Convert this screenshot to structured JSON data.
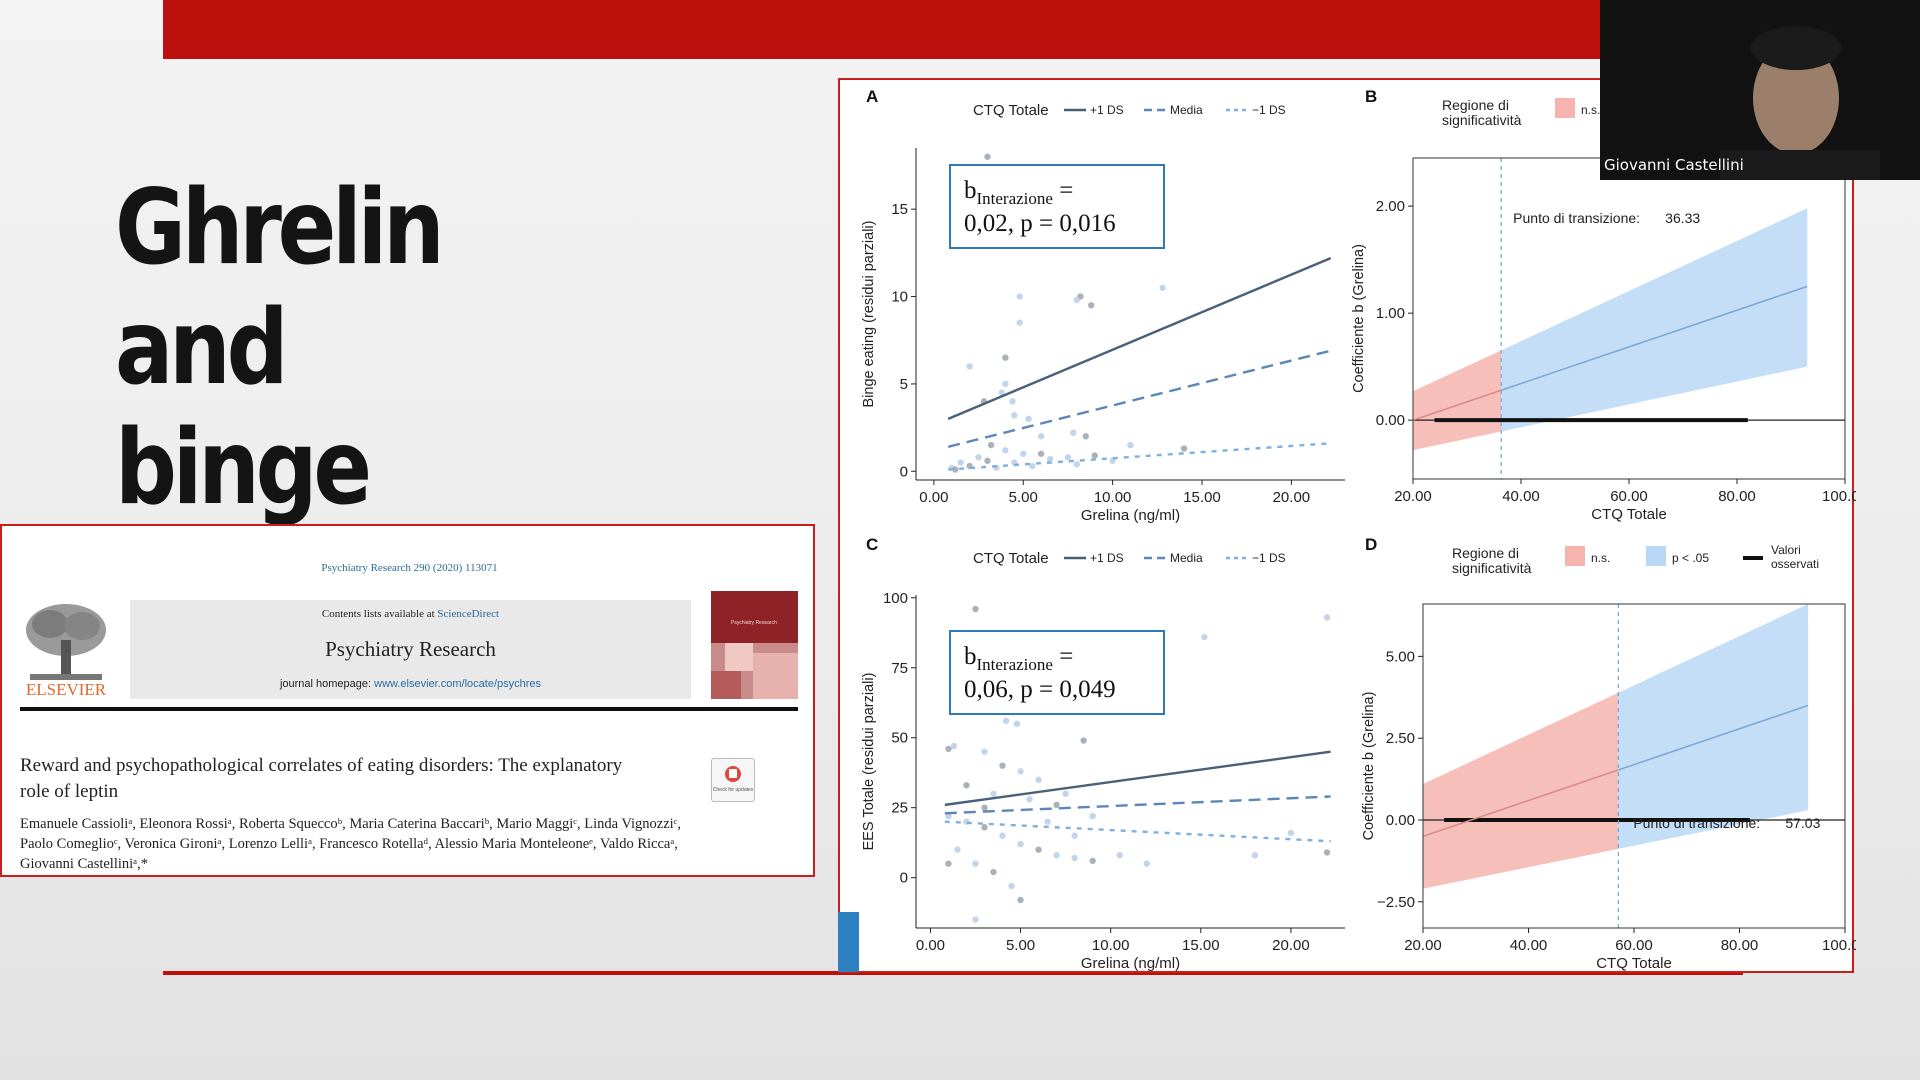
{
  "slide": {
    "title": "Ghrelin and\nbinge eating",
    "colors": {
      "accent": "#bd0f0c",
      "line_dark": "#4a5f78",
      "line_mid": "#5b87b8",
      "line_light": "#7fb0e0",
      "ns": "#f6b4ae",
      "sig": "#b9d8f5"
    }
  },
  "paper": {
    "journal_ref": "Psychiatry Research 290 (2020) 113071",
    "contents_prefix": "Contents lists available at ",
    "sciencedirect": "ScienceDirect",
    "journal_name": "Psychiatry Research",
    "homepage_prefix": "journal homepage: ",
    "homepage_url": "www.elsevier.com/locate/psychres",
    "publisher": "ELSEVIER",
    "cover_label": "Psychiatry Research",
    "check_label": "Check for updates",
    "title": "Reward and psychopathological correlates of eating disorders: The explanatory role of leptin",
    "authors": "Emanuele Cassioliᵃ, Eleonora Rossiᵃ, Roberta Squeccoᵇ, Maria Caterina Baccariᵇ, Mario Maggiᶜ, Linda Vignozziᶜ, Paolo Comeglioᶜ, Veronica Gironiᵃ, Lorenzo Lelliᵃ, Francesco Rotellaᵈ, Alessio Maria Monteleoneᵉ, Valdo Riccaᵃ, Giovanni Castelliniᵃ,*"
  },
  "webcam": {
    "name": "Giovanni Castellini"
  },
  "chart_data": [
    {
      "panel": "A",
      "type": "scatter",
      "legend_title": "CTQ Totale",
      "legend_entries": [
        "+1 DS",
        "Media",
        "−1 DS"
      ],
      "annotation": [
        "b",
        "Interazione",
        " =",
        "0,02, p = 0,016"
      ],
      "xlabel": "Grelina (ng/ml)",
      "ylabel": "Binge eating (residui parziali)",
      "xlim": [
        -1,
        23
      ],
      "ylim": [
        -0.5,
        18.5
      ],
      "xticks": [
        0,
        5,
        10,
        15,
        20
      ],
      "xtick_labels": [
        "0.00",
        "5.00",
        "10.00",
        "15.00",
        "20.00"
      ],
      "yticks": [
        0,
        5,
        10,
        15
      ],
      "ytick_labels": [
        "0",
        "5",
        "10",
        "15"
      ],
      "series": [
        {
          "name": "+1 DS",
          "x": [
            0.8,
            22.2
          ],
          "y": [
            3.0,
            12.2
          ]
        },
        {
          "name": "Media",
          "x": [
            0.8,
            22.2
          ],
          "y": [
            1.4,
            6.9
          ]
        },
        {
          "name": "−1 DS",
          "x": [
            0.8,
            22.2
          ],
          "y": [
            0.1,
            1.6
          ]
        }
      ],
      "points": [
        [
          3.0,
          18.0
        ],
        [
          2.0,
          6.0
        ],
        [
          4.0,
          5.0
        ],
        [
          4.0,
          6.5
        ],
        [
          4.8,
          8.5
        ],
        [
          4.8,
          10.0
        ],
        [
          8.2,
          10.0
        ],
        [
          8.0,
          9.8
        ],
        [
          12.8,
          10.5
        ],
        [
          8.8,
          9.5
        ],
        [
          4.4,
          4.0
        ],
        [
          4.5,
          3.2
        ],
        [
          2.8,
          4.0
        ],
        [
          3.8,
          4.5
        ],
        [
          5.3,
          3.0
        ],
        [
          8.5,
          2.0
        ],
        [
          7.8,
          2.2
        ],
        [
          6.0,
          2.0
        ],
        [
          3.2,
          1.5
        ],
        [
          1.5,
          0.5
        ],
        [
          2.5,
          0.8
        ],
        [
          3.0,
          0.6
        ],
        [
          4.0,
          1.2
        ],
        [
          5.0,
          1.0
        ],
        [
          6.0,
          1.0
        ],
        [
          7.5,
          0.8
        ],
        [
          1.0,
          0.2
        ],
        [
          2.0,
          0.3
        ],
        [
          4.5,
          0.5
        ],
        [
          10.0,
          0.6
        ],
        [
          14.0,
          1.3
        ],
        [
          3.5,
          0.2
        ],
        [
          5.5,
          0.3
        ],
        [
          1.2,
          0.1
        ],
        [
          6.5,
          0.7
        ],
        [
          8.0,
          0.4
        ],
        [
          9.0,
          0.9
        ],
        [
          11.0,
          1.5
        ]
      ]
    },
    {
      "panel": "B",
      "type": "area",
      "legend_title": "Regione di significatività",
      "legend_entries": [
        "n.s."
      ],
      "annotation_label": "Punto di transizione:",
      "transition_value": "36.33",
      "transition_point": 36.33,
      "xlabel": "CTQ Totale",
      "ylabel": "Coefficiente b (Grelina)",
      "xlim": [
        20,
        100
      ],
      "ylim": [
        -0.55,
        2.45
      ],
      "xticks": [
        20,
        40,
        60,
        80,
        100
      ],
      "xtick_labels": [
        "20.00",
        "40.00",
        "60.00",
        "80.00",
        "100.00"
      ],
      "yticks": [
        0,
        1,
        2
      ],
      "ytick_labels": [
        "0.00",
        "1.00",
        "2.00"
      ],
      "line": {
        "x": [
          20,
          93
        ],
        "y": [
          0.0,
          1.25
        ]
      },
      "band": {
        "x": [
          20,
          93
        ],
        "lower": [
          -0.28,
          0.5
        ],
        "upper": [
          0.27,
          1.98
        ]
      },
      "observed": [
        24,
        82
      ]
    },
    {
      "panel": "C",
      "type": "scatter",
      "legend_title": "CTQ Totale",
      "legend_entries": [
        "+1 DS",
        "Media",
        "−1 DS"
      ],
      "annotation": [
        "b",
        "Interazione",
        " =",
        "0,06, p = 0,049"
      ],
      "xlabel": "Grelina (ng/ml)",
      "ylabel": "EES Totale (residui parziali)",
      "xlim": [
        -0.8,
        23
      ],
      "ylim": [
        -18,
        101
      ],
      "xticks": [
        0,
        5,
        10,
        15,
        20
      ],
      "xtick_labels": [
        "0.00",
        "5.00",
        "10.00",
        "15.00",
        "20.00"
      ],
      "yticks": [
        0,
        25,
        50,
        75,
        100
      ],
      "ytick_labels": [
        "0",
        "25",
        "50",
        "75",
        "100"
      ],
      "series": [
        {
          "name": "+1 DS",
          "x": [
            0.8,
            22.2
          ],
          "y": [
            26,
            45
          ]
        },
        {
          "name": "Media",
          "x": [
            0.8,
            22.2
          ],
          "y": [
            23,
            29
          ]
        },
        {
          "name": "−1 DS",
          "x": [
            0.8,
            22.2
          ],
          "y": [
            20,
            13
          ]
        }
      ],
      "points": [
        [
          2.5,
          96
        ],
        [
          22.0,
          93
        ],
        [
          15.2,
          86
        ],
        [
          8.5,
          49
        ],
        [
          4.2,
          56
        ],
        [
          4.8,
          55
        ],
        [
          1.0,
          46
        ],
        [
          1.3,
          47
        ],
        [
          3.0,
          45
        ],
        [
          4.0,
          40
        ],
        [
          5.0,
          38
        ],
        [
          6.0,
          35
        ],
        [
          2.0,
          33
        ],
        [
          3.5,
          30
        ],
        [
          5.5,
          28
        ],
        [
          7.0,
          26
        ],
        [
          1.0,
          22
        ],
        [
          2.0,
          20
        ],
        [
          3.0,
          18
        ],
        [
          4.0,
          15
        ],
        [
          5.0,
          12
        ],
        [
          6.0,
          10
        ],
        [
          7.0,
          8
        ],
        [
          8.0,
          7
        ],
        [
          9.0,
          6
        ],
        [
          1.5,
          10
        ],
        [
          2.5,
          5
        ],
        [
          3.5,
          2
        ],
        [
          4.5,
          -3
        ],
        [
          2.5,
          -15
        ],
        [
          5.0,
          -8
        ],
        [
          18.0,
          8
        ],
        [
          20.0,
          16
        ],
        [
          22.0,
          9
        ],
        [
          10.5,
          8
        ],
        [
          12.0,
          5
        ],
        [
          3.0,
          25
        ],
        [
          6.5,
          20
        ],
        [
          8.0,
          15
        ],
        [
          1.0,
          5
        ],
        [
          7.5,
          30
        ],
        [
          9.0,
          22
        ]
      ]
    },
    {
      "panel": "D",
      "type": "area",
      "legend_title": "Regione di significatività",
      "legend_entries": [
        "n.s.",
        "p < .05",
        "Valori osservati"
      ],
      "annotation_label": "Punto di transizione:",
      "transition_value": "57.03",
      "transition_point": 57.03,
      "xlabel": "CTQ Totale",
      "ylabel": "Coefficiente b (Grelina)",
      "xlim": [
        20,
        100
      ],
      "ylim": [
        -3.3,
        6.6
      ],
      "xticks": [
        20,
        40,
        60,
        80,
        100
      ],
      "xtick_labels": [
        "20.00",
        "40.00",
        "60.00",
        "80.00",
        "100.00"
      ],
      "yticks": [
        -2.5,
        0,
        2.5,
        5
      ],
      "ytick_labels": [
        "−2.50",
        "0.00",
        "2.50",
        "5.00"
      ],
      "line": {
        "x": [
          20,
          93
        ],
        "y": [
          -0.5,
          3.5
        ]
      },
      "band": {
        "x": [
          20,
          93
        ],
        "lower": [
          -2.1,
          0.3
        ],
        "upper": [
          1.1,
          6.6
        ]
      },
      "observed": [
        24,
        82
      ]
    }
  ]
}
